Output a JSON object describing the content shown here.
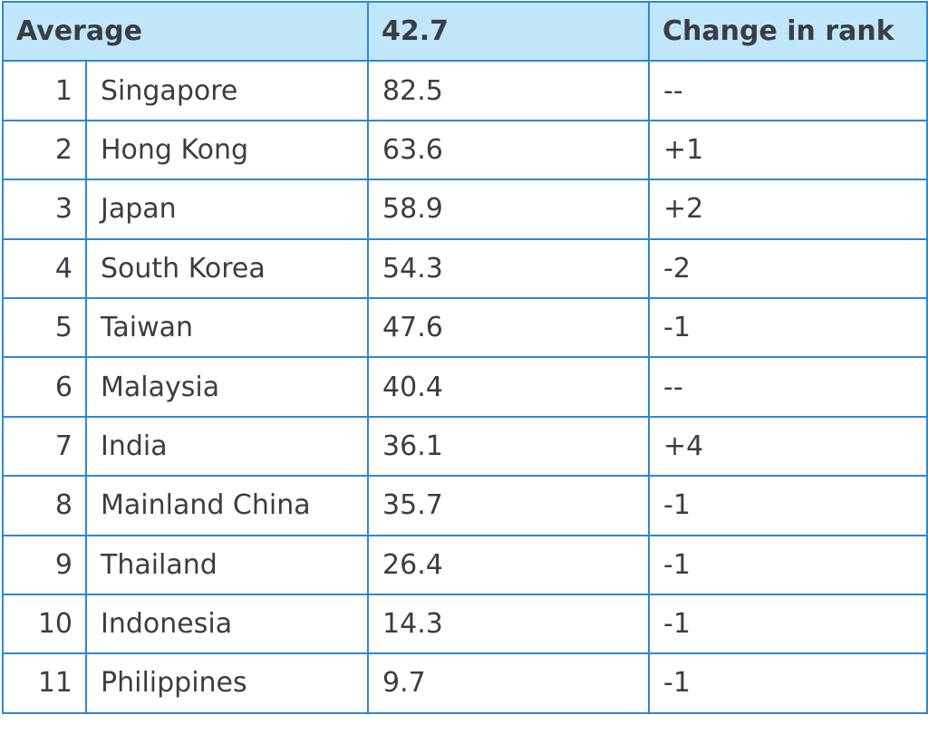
{
  "header": {
    "label": "Average",
    "score": "42.7",
    "change": "Change in rank"
  },
  "rows": [
    {
      "rank": "1",
      "country": "Singapore",
      "score": "82.5",
      "change": "--"
    },
    {
      "rank": "2",
      "country": "Hong Kong",
      "score": "63.6",
      "change": "+1"
    },
    {
      "rank": "3",
      "country": "Japan",
      "score": "58.9",
      "change": "+2"
    },
    {
      "rank": "4",
      "country": "South Korea",
      "score": "54.3",
      "change": "-2"
    },
    {
      "rank": "5",
      "country": "Taiwan",
      "score": "47.6",
      "change": "-1"
    },
    {
      "rank": "6",
      "country": "Malaysia",
      "score": "40.4",
      "change": "--"
    },
    {
      "rank": "7",
      "country": "India",
      "score": "36.1",
      "change": "+4"
    },
    {
      "rank": "8",
      "country": "Mainland China",
      "score": "35.7",
      "change": "-1"
    },
    {
      "rank": "9",
      "country": "Thailand",
      "score": "26.4",
      "change": "-1"
    },
    {
      "rank": "10",
      "country": "Indonesia",
      "score": "14.3",
      "change": "-1"
    },
    {
      "rank": "11",
      "country": "Philippines",
      "score": "9.7",
      "change": "-1"
    }
  ]
}
